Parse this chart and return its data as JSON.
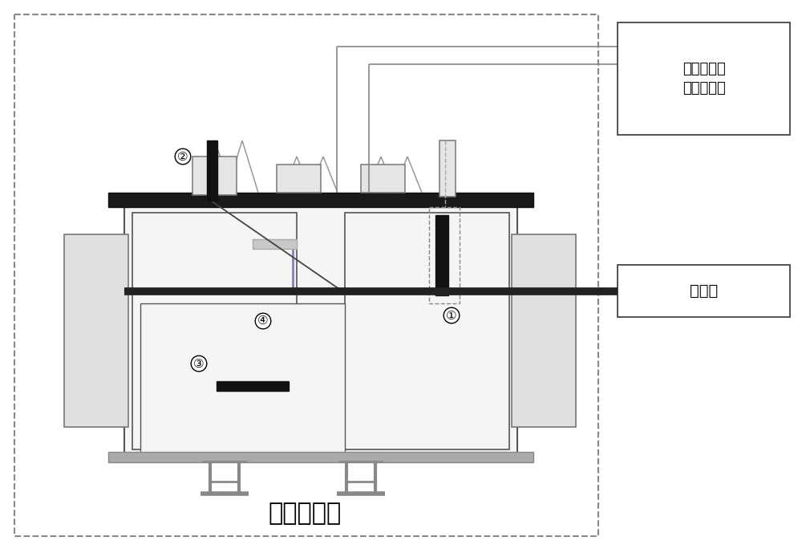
{
  "bg_color": "#ffffff",
  "dashed_box_color": "#888888",
  "box1_label": "变压器直流\n电阵测试仪",
  "box2_label": "温度计",
  "bottom_label": "高温试验筱",
  "thermometer_bar_color": "#222222",
  "purple_line_color": "#8080c0",
  "tank_fill": "#f5f5f5",
  "tank_edge": "#555555",
  "top_plate_color": "#1a1a1a",
  "side_panel_fill": "#e0e0e0",
  "side_panel_edge": "#777777",
  "bushing_box_fill": "#e8e8e8",
  "bushing_box_edge": "#666666",
  "wire_color": "#888888",
  "diag_line_color": "#444444",
  "probe_color": "#111111",
  "heater_color": "#111111",
  "foot_color": "#888888",
  "gray_bar_fill": "#c8c8c8",
  "gray_bar_edge": "#999999"
}
